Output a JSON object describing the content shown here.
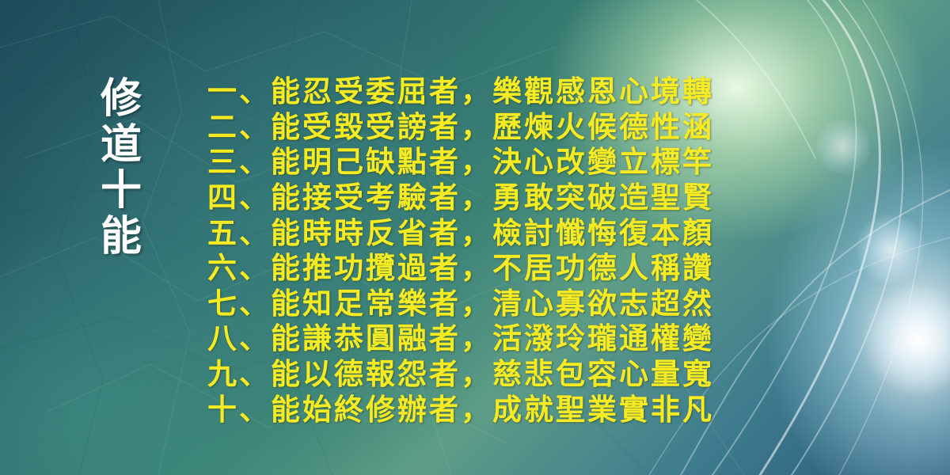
{
  "title": [
    "修",
    "道",
    "十",
    "能"
  ],
  "lines": [
    {
      "number": "一",
      "first": "能忍受委屈者",
      "second": "樂觀感恩心境轉"
    },
    {
      "number": "二",
      "first": "能受毀受謗者",
      "second": "歷煉火候德性涵"
    },
    {
      "number": "三",
      "first": "能明己缺點者",
      "second": "決心改變立標竿"
    },
    {
      "number": "四",
      "first": "能接受考驗者",
      "second": "勇敢突破造聖賢"
    },
    {
      "number": "五",
      "first": "能時時反省者",
      "second": "檢討懺悔復本顏"
    },
    {
      "number": "六",
      "first": "能推功攬過者",
      "second": "不居功德人稱讚"
    },
    {
      "number": "七",
      "first": "能知足常樂者",
      "second": "清心寡欲志超然"
    },
    {
      "number": "八",
      "first": "能謙恭圓融者",
      "second": "活潑玲瓏通權變"
    },
    {
      "number": "九",
      "first": "能以德報怨者",
      "second": "慈悲包容心量寬"
    },
    {
      "number": "十",
      "first": "能始終修辦者",
      "second": "成就聖業實非凡"
    }
  ],
  "separator": "、",
  "comma": "，",
  "colors": {
    "title_text": "#ffffff",
    "verse_text": "#f6ea22",
    "background_primary": "#2c6a6e",
    "background_secondary": "#5e9e86"
  }
}
